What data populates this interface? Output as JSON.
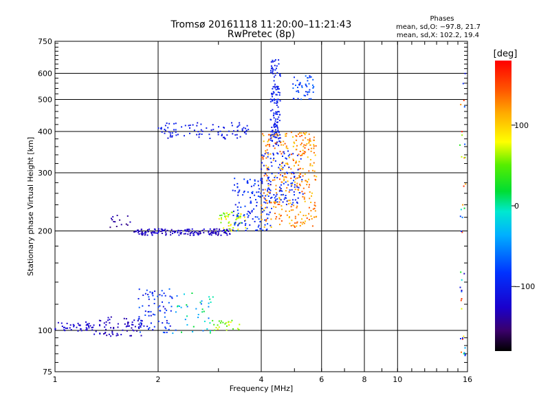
{
  "header": {
    "title_line1": "Tromsø 20161118 11:20:00–11:21:43",
    "title_line2": "RwPretec (8p)",
    "stats_title": "Phases",
    "stats_line1": "mean, sd,O: −97.8, 21.7",
    "stats_line2": "mean, sd,X: 102.2, 19.4"
  },
  "colorbar": {
    "unit": "[deg]",
    "ticks": [
      {
        "value": 100,
        "label": "100"
      },
      {
        "value": 0,
        "label": "0"
      },
      {
        "value": -100,
        "label": "−100"
      }
    ],
    "range": [
      -180,
      180
    ]
  },
  "chart_data": {
    "type": "scatter",
    "title": "Tromsø 20161118 11:20:00–11:21:43",
    "subtitle": "RwPretec (8p)",
    "xlabel": "Frequency [MHz]",
    "ylabel": "Stationary phase Virtual Height [km]",
    "xscale": "log",
    "yscale": "log",
    "xlim": [
      1,
      16
    ],
    "ylim": [
      75,
      750
    ],
    "x_ticks": [
      {
        "value": 1,
        "label": "1"
      },
      {
        "value": 2,
        "label": "2"
      },
      {
        "value": 4,
        "label": "4"
      },
      {
        "value": 6,
        "label": "6"
      },
      {
        "value": 8,
        "label": "8"
      },
      {
        "value": 10,
        "label": "10"
      },
      {
        "value": 16,
        "label": "16"
      }
    ],
    "y_ticks": [
      {
        "value": 75,
        "label": "75"
      },
      {
        "value": 100,
        "label": "100"
      },
      {
        "value": 200,
        "label": "200"
      },
      {
        "value": 300,
        "label": "300"
      },
      {
        "value": 400,
        "label": "400"
      },
      {
        "value": 500,
        "label": "500"
      },
      {
        "value": 600,
        "label": "600"
      },
      {
        "value": 750,
        "label": "750"
      }
    ],
    "x_gridlines": [
      2,
      4,
      6,
      8,
      10
    ],
    "y_gridlines": [
      100,
      200,
      300,
      400,
      500,
      600
    ],
    "color_variable": "phase [deg]",
    "clusters": [
      {
        "x_range": [
          1.0,
          1.3
        ],
        "y_range": [
          99,
          106
        ],
        "count": 45,
        "phase_range": [
          -130,
          -115
        ]
      },
      {
        "x_range": [
          1.3,
          1.8
        ],
        "y_range": [
          96,
          110
        ],
        "count": 70,
        "phase_range": [
          -140,
          -120
        ]
      },
      {
        "x_range": [
          1.75,
          2.2
        ],
        "y_range": [
          98,
          135
        ],
        "count": 80,
        "phase_range": [
          -120,
          -60
        ]
      },
      {
        "x_range": [
          2.2,
          2.9
        ],
        "y_range": [
          98,
          130
        ],
        "count": 40,
        "phase_range": [
          -90,
          20
        ]
      },
      {
        "x_range": [
          2.85,
          3.5
        ],
        "y_range": [
          100,
          108
        ],
        "count": 25,
        "phase_range": [
          40,
          90
        ]
      },
      {
        "x_range": [
          1.45,
          1.7
        ],
        "y_range": [
          205,
          225
        ],
        "count": 14,
        "phase_range": [
          -150,
          -130
        ]
      },
      {
        "x_range": [
          1.7,
          3.3
        ],
        "y_range": [
          194,
          203
        ],
        "count": 160,
        "phase_range": [
          -140,
          -115
        ]
      },
      {
        "x_range": [
          3.0,
          3.6
        ],
        "y_range": [
          200,
          228
        ],
        "count": 50,
        "phase_range": [
          40,
          95
        ]
      },
      {
        "x_range": [
          3.3,
          4.3
        ],
        "y_range": [
          200,
          290
        ],
        "count": 130,
        "phase_range": [
          -110,
          -70
        ]
      },
      {
        "x_range": [
          4.0,
          5.8
        ],
        "y_range": [
          205,
          400
        ],
        "count": 330,
        "phase_range": [
          100,
          150
        ]
      },
      {
        "x_range": [
          4.0,
          5.3
        ],
        "y_range": [
          240,
          350
        ],
        "count": 120,
        "phase_range": [
          -110,
          -80
        ]
      },
      {
        "x_range": [
          2.0,
          3.7
        ],
        "y_range": [
          380,
          425
        ],
        "count": 90,
        "phase_range": [
          -115,
          -95
        ]
      },
      {
        "x_range": [
          4.25,
          4.55
        ],
        "y_range": [
          360,
          660
        ],
        "count": 140,
        "phase_range": [
          -110,
          -90
        ]
      },
      {
        "x_range": [
          4.95,
          5.7
        ],
        "y_range": [
          500,
          590
        ],
        "count": 45,
        "phase_range": [
          -100,
          -60
        ]
      },
      {
        "x_range": [
          15.2,
          15.8
        ],
        "y_range": [
          80,
          720
        ],
        "count": 40,
        "phase_range": [
          -140,
          170
        ]
      }
    ]
  }
}
